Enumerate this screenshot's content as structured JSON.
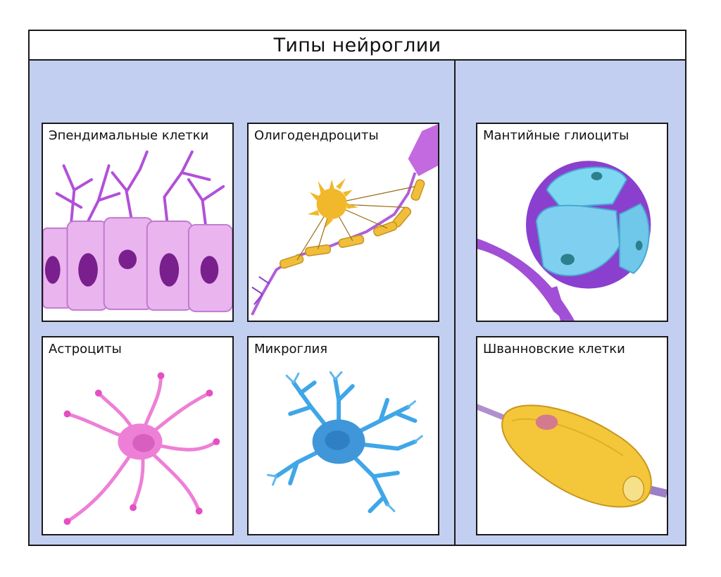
{
  "title": "Типы нейроглии",
  "panels": {
    "ependymal": "Эпендимальные клетки",
    "oligodendrocytes": "Олигодендроциты",
    "astrocytes": "Астроциты",
    "microglia": "Микроглия",
    "satellite": "Мантийные глиоциты",
    "schwann": "Шванновские клетки"
  },
  "colors": {
    "background": "#c3cff0",
    "ependymal": "#e8a6ec",
    "oligodendrocyte": "#f2c33a",
    "axon": "#c05fe0",
    "astrocyte": "#ee7fd6",
    "microglia": "#3fa6e8",
    "satellite": "#7fd8f2",
    "schwann": "#f4c63a"
  }
}
